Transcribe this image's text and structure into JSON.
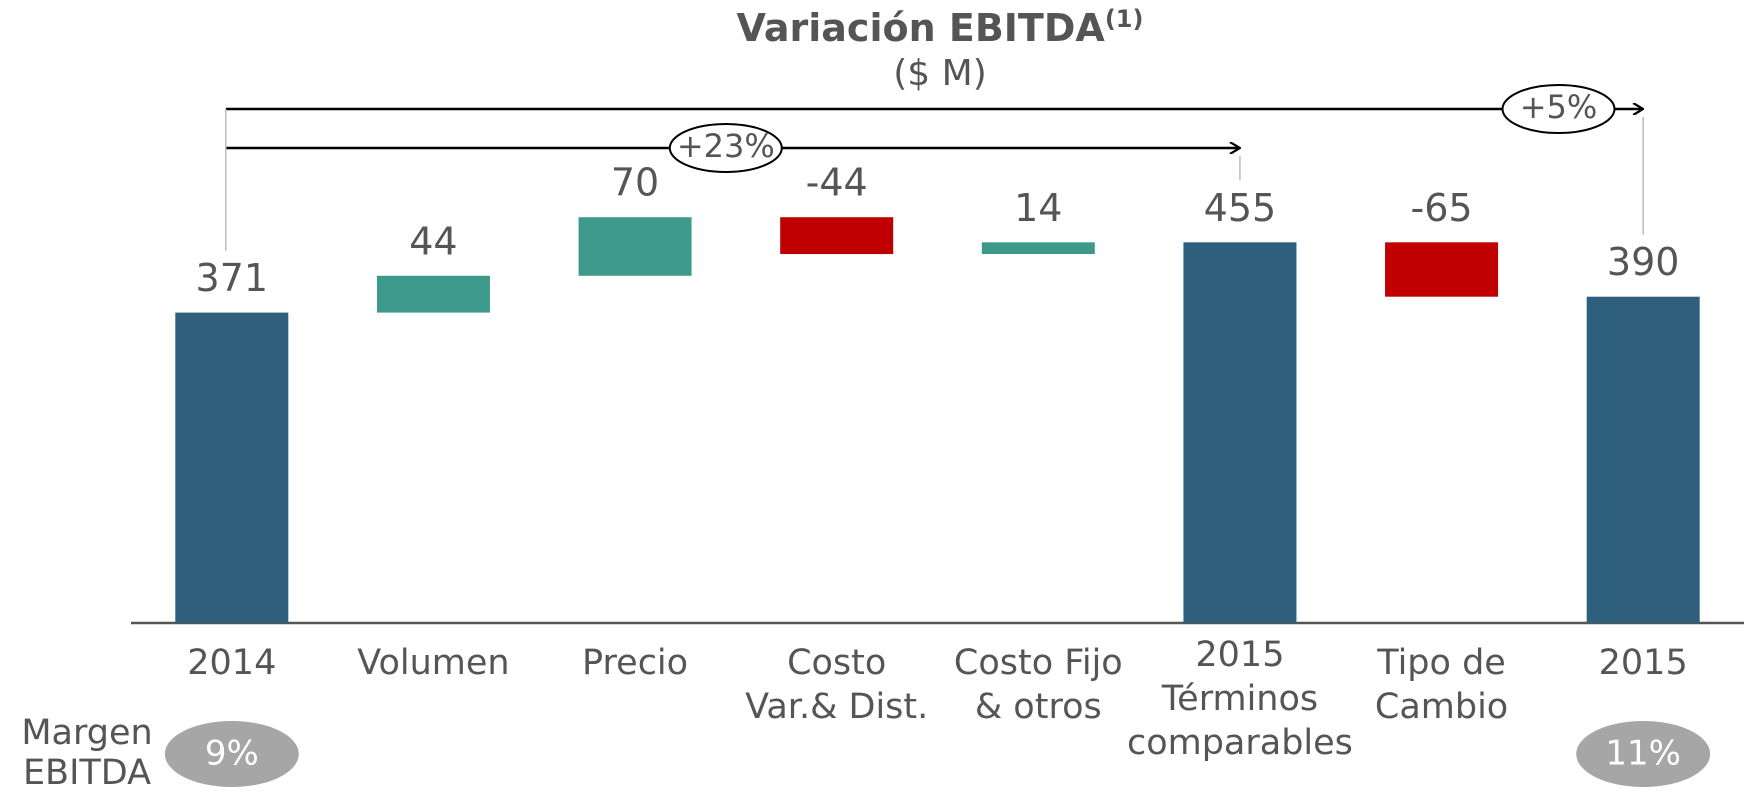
{
  "chart_data": {
    "type": "waterfall",
    "title": "Variación EBITDA",
    "title_superscript": "(1)",
    "subtitle": "($ M)",
    "categories": [
      [
        "2014"
      ],
      [
        "Volumen"
      ],
      [
        "Precio"
      ],
      [
        "Costo",
        "Var.& Dist."
      ],
      [
        "Costo Fijo",
        "& otros"
      ],
      [
        "2015",
        "Términos",
        "comparables"
      ],
      [
        "Tipo de",
        "Cambio"
      ],
      [
        "2015"
      ]
    ],
    "values": [
      371,
      44,
      70,
      -44,
      14,
      455,
      -65,
      390
    ],
    "measure": [
      "total",
      "relative",
      "relative",
      "relative",
      "relative",
      "total",
      "relative",
      "total"
    ],
    "colors": {
      "total": "#2e5f7c",
      "increase": "#3d9a8b",
      "decrease": "#c00000"
    },
    "ylim": [
      0,
      600
    ],
    "annotations": [
      {
        "label": "+23%",
        "from": 0,
        "to": 5
      },
      {
        "label": "+5%",
        "from": 0,
        "to": 7
      }
    ],
    "margin": {
      "label": [
        "Margen",
        "EBITDA"
      ],
      "values": [
        9,
        null,
        null,
        null,
        null,
        null,
        null,
        11
      ],
      "value_labels": [
        "9%",
        null,
        null,
        null,
        null,
        null,
        null,
        "11%"
      ]
    }
  }
}
